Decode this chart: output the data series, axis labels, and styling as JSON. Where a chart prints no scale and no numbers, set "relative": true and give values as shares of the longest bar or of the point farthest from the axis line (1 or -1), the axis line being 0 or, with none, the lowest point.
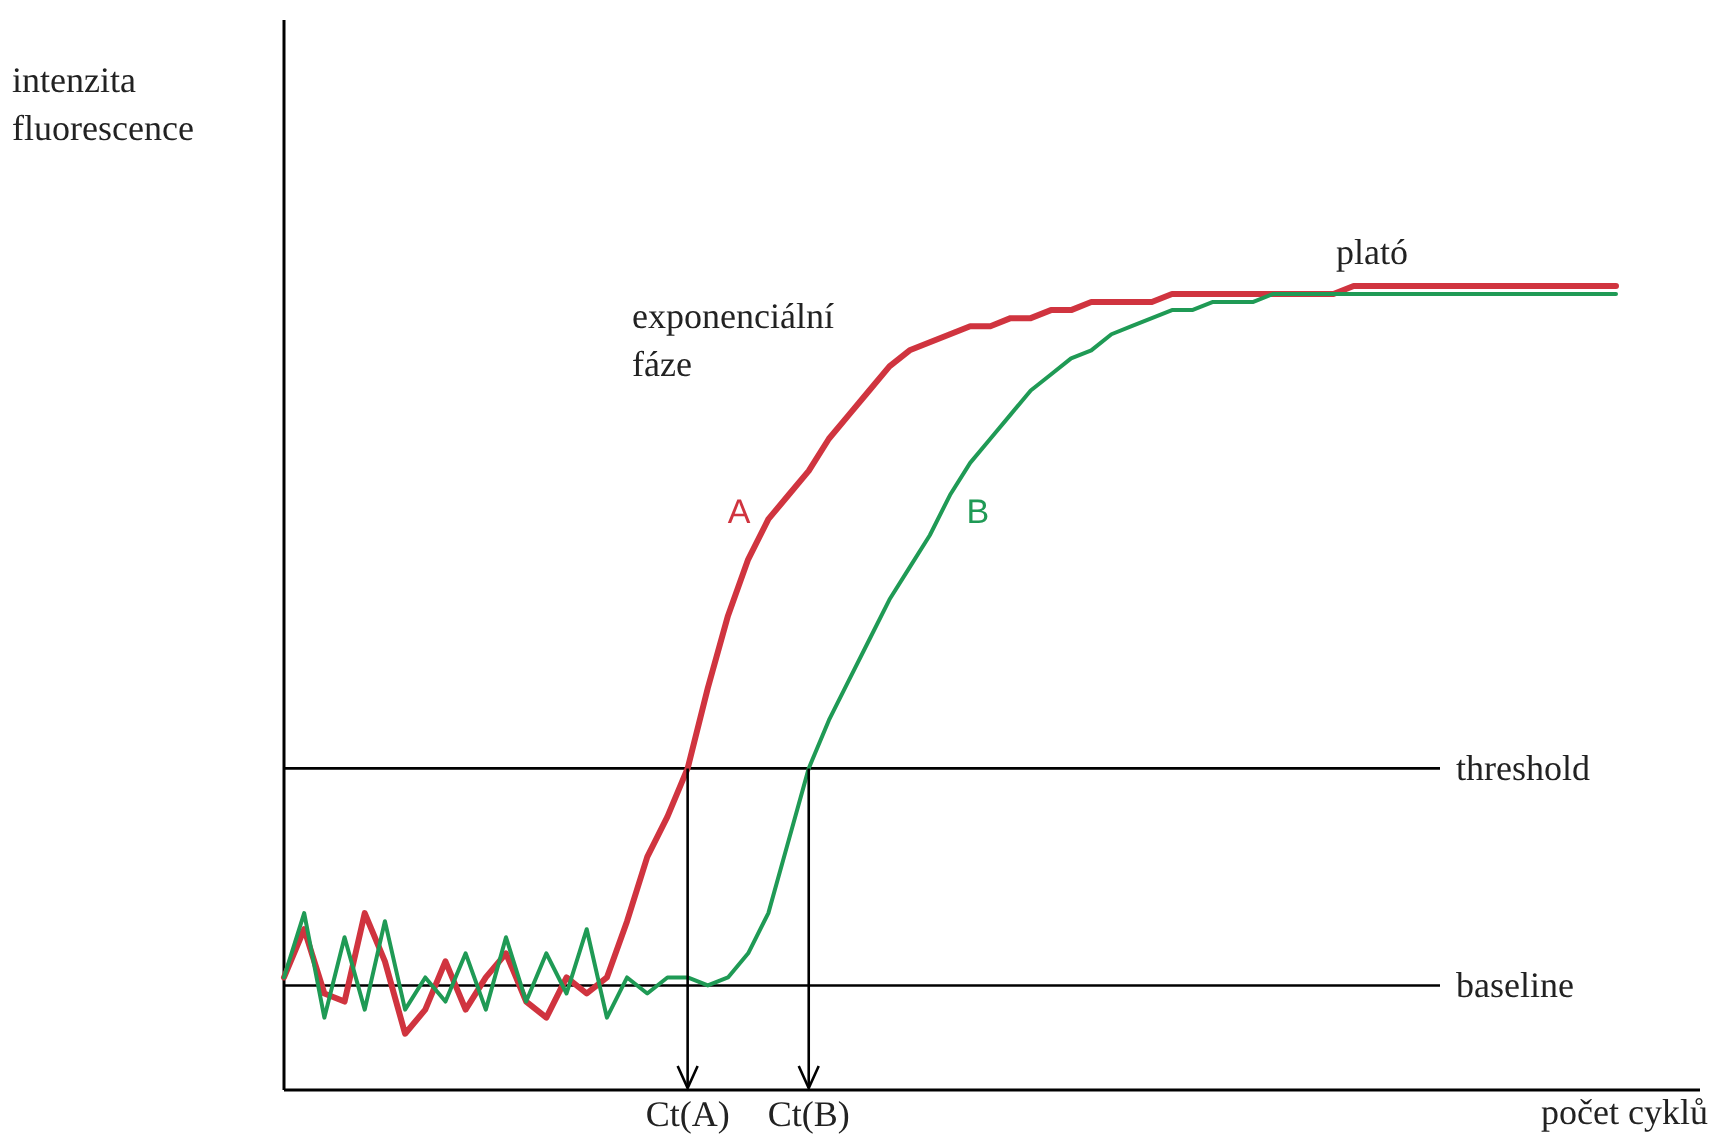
{
  "chart_data": {
    "type": "line",
    "relative": true,
    "xlabel": "počet cyklů",
    "ylabel": "intenzita fluorescence",
    "categories": [
      null,
      null,
      null,
      null,
      null,
      null,
      null,
      null,
      null,
      null,
      null,
      null,
      null,
      null,
      null,
      null,
      null,
      null,
      null,
      null,
      null,
      null,
      null,
      null,
      null,
      null,
      null,
      null,
      null,
      null,
      null,
      null,
      null,
      null,
      null,
      null,
      null,
      null,
      null,
      null,
      null,
      null,
      null,
      null,
      null,
      null,
      null,
      null,
      null,
      null,
      null,
      null,
      null,
      null,
      null,
      null,
      null,
      null,
      null,
      null,
      null,
      null,
      null,
      null,
      null,
      null,
      null
    ],
    "series": [
      {
        "name": "A",
        "color": "#d0343f",
        "values": [
          0.14,
          0.2,
          0.12,
          0.11,
          0.22,
          0.16,
          0.07,
          0.1,
          0.16,
          0.1,
          0.14,
          0.17,
          0.11,
          0.09,
          0.14,
          0.12,
          0.14,
          0.21,
          0.29,
          0.34,
          0.4,
          0.5,
          0.59,
          0.66,
          0.71,
          0.74,
          0.77,
          0.81,
          0.84,
          0.87,
          0.9,
          0.92,
          0.93,
          0.94,
          0.95,
          0.95,
          0.96,
          0.96,
          0.97,
          0.97,
          0.98,
          0.98,
          0.98,
          0.98,
          0.99,
          0.99,
          0.99,
          0.99,
          0.99,
          0.99,
          0.99,
          0.99,
          0.99,
          1,
          1,
          1,
          1,
          1,
          1,
          1,
          1,
          1,
          1,
          1,
          1,
          1,
          1
        ]
      },
      {
        "name": "B",
        "color": "#1f9a55",
        "values": [
          0.14,
          0.22,
          0.09,
          0.19,
          0.1,
          0.21,
          0.1,
          0.14,
          0.11,
          0.17,
          0.1,
          0.19,
          0.11,
          0.17,
          0.12,
          0.2,
          0.09,
          0.14,
          0.12,
          0.14,
          0.14,
          0.13,
          0.14,
          0.17,
          0.22,
          0.31,
          0.4,
          0.46,
          0.51,
          0.56,
          0.61,
          0.65,
          0.69,
          0.74,
          0.78,
          0.81,
          0.84,
          0.87,
          0.89,
          0.91,
          0.92,
          0.94,
          0.95,
          0.96,
          0.97,
          0.97,
          0.98,
          0.98,
          0.98,
          0.99,
          0.99,
          0.99,
          0.99,
          0.99,
          0.99,
          0.99,
          0.99,
          0.99,
          0.99,
          0.99,
          0.99,
          0.99,
          0.99,
          0.99,
          0.99,
          0.99,
          0.99
        ]
      }
    ],
    "ref_lines": [
      {
        "axis": "y",
        "value": 0.4,
        "label": "threshold"
      },
      {
        "axis": "y",
        "value": 0.13,
        "label": "baseline"
      }
    ],
    "annotations": [
      "exponenciální\nfáze",
      "plató",
      "Ct(A)",
      "Ct(B)"
    ]
  }
}
